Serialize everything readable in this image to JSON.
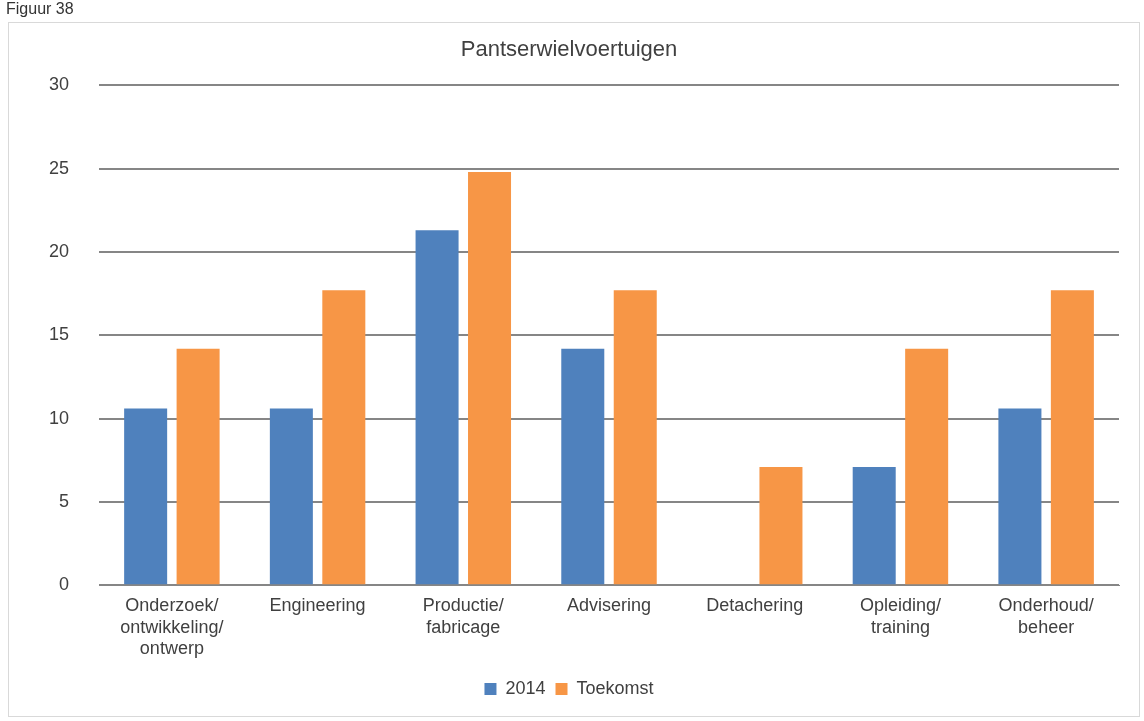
{
  "chart_data": {
    "type": "bar",
    "title": "Pantserwielvoertuigen",
    "annotations": [
      "Figuur 38"
    ],
    "categories": [
      "Onderzoek/ontwikkeling/ontwerp",
      "Engineering",
      "Productie/fabricage",
      "Advisering",
      "Detachering",
      "Opleiding/training",
      "Onderhoud/beheer"
    ],
    "series": [
      {
        "name": "2014",
        "color": "#4f81bd",
        "values": [
          10.6,
          10.6,
          21.3,
          14.2,
          0,
          7.1,
          10.6
        ]
      },
      {
        "name": "Toekomst",
        "color": "#f79646",
        "values": [
          14.2,
          17.7,
          24.8,
          17.7,
          7.1,
          14.2,
          17.7
        ]
      }
    ],
    "ylim": [
      0,
      30
    ],
    "yticks": [
      0,
      5,
      10,
      15,
      20,
      25,
      30
    ],
    "grid": "y",
    "legend": "bottom"
  }
}
